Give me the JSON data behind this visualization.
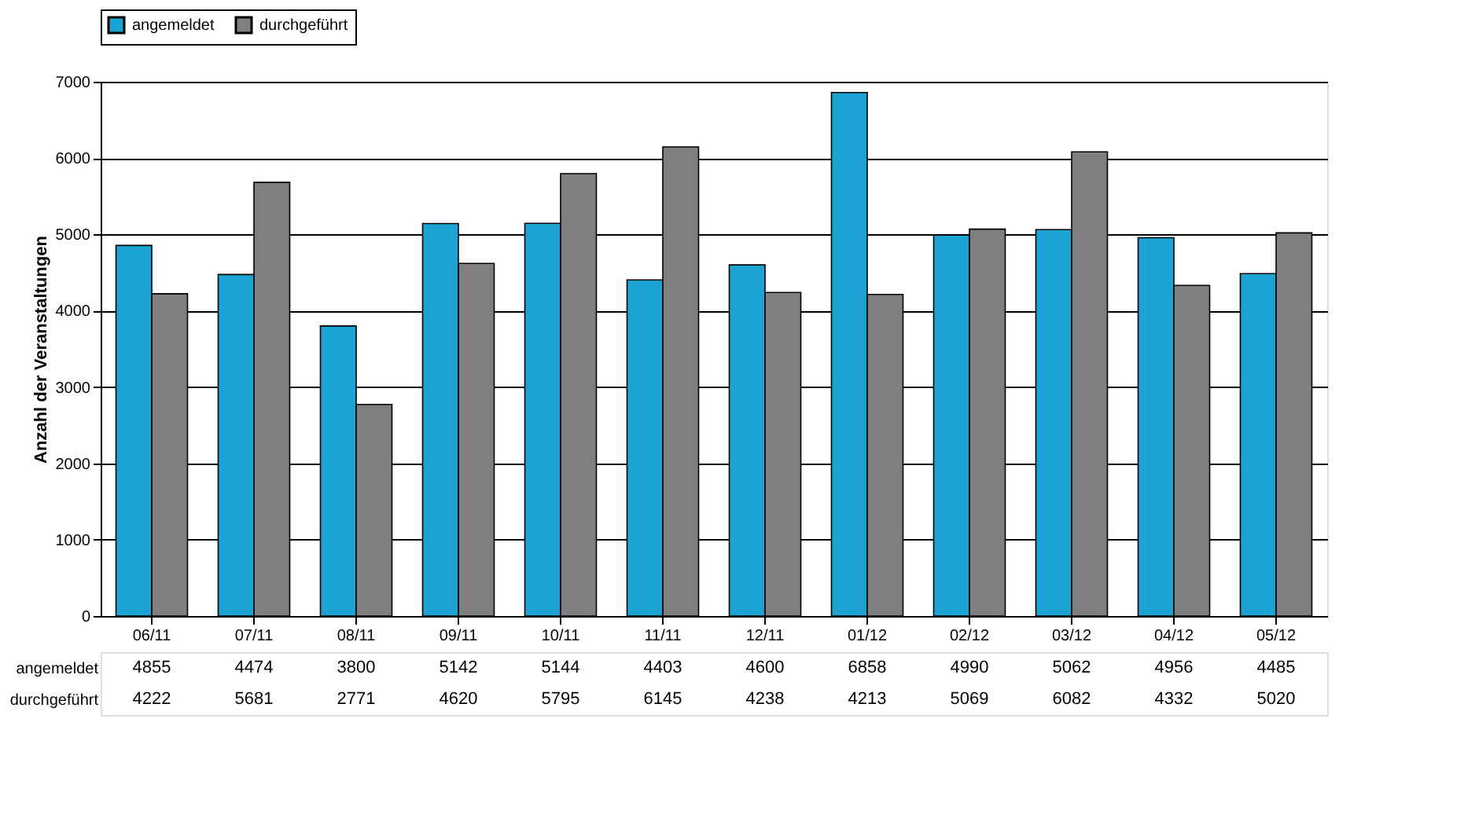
{
  "chart_data": {
    "type": "bar",
    "ylabel": "Anzahl der Veranstaltungen",
    "categories": [
      "06/11",
      "07/11",
      "08/11",
      "09/11",
      "10/11",
      "11/11",
      "12/11",
      "01/12",
      "02/12",
      "03/12",
      "04/12",
      "05/12"
    ],
    "series": [
      {
        "name": "angemeldet",
        "color": "#1ba3d3",
        "values": [
          4855,
          4474,
          3800,
          5142,
          5144,
          4403,
          4600,
          6858,
          4990,
          5062,
          4956,
          4485
        ]
      },
      {
        "name": "durchgeführt",
        "color": "#7f7f7f",
        "values": [
          4222,
          5681,
          2771,
          4620,
          5795,
          6145,
          4238,
          4213,
          5069,
          6082,
          4332,
          5020
        ]
      }
    ],
    "ylim": [
      0,
      7000
    ],
    "yticks": [
      0,
      1000,
      2000,
      3000,
      4000,
      5000,
      6000,
      7000
    ],
    "grid": "y",
    "legend": "top",
    "data_labels": true
  }
}
